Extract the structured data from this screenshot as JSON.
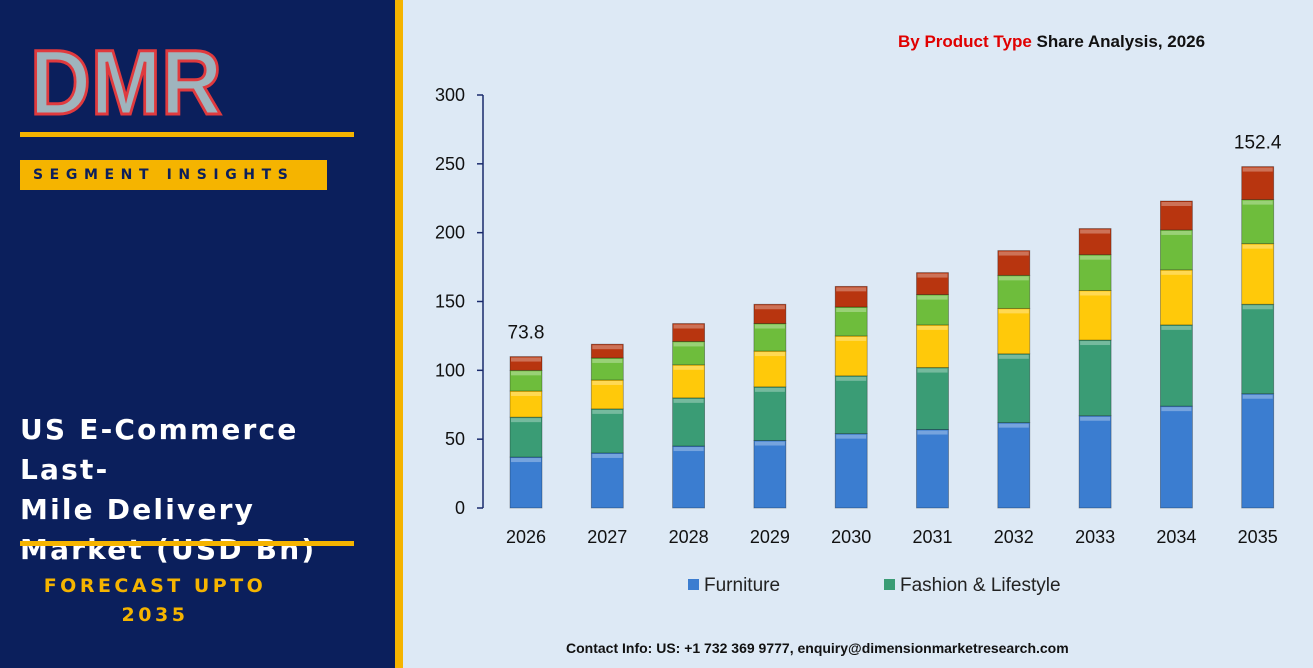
{
  "brand": {
    "logo_text": "DMR",
    "colors": {
      "panel": "#0b1f5c",
      "accent": "#f5b400",
      "logo_red": "#e03a3e",
      "logo_gray": "#9fb4bd"
    }
  },
  "sidebar": {
    "badge": "SEGMENT INSIGHTS",
    "title_lines": [
      "US E-Commerce Last-",
      "Mile Delivery",
      "Market (USD Bn)"
    ],
    "forecast_lines": [
      "FORECAST UPTO",
      "2035"
    ]
  },
  "chart_title": {
    "highlight": "By Product Type",
    "rest": " Share Analysis, 2026"
  },
  "chart_data": {
    "type": "bar",
    "stacked": true,
    "categories": [
      "2026",
      "2027",
      "2028",
      "2029",
      "2030",
      "2031",
      "2032",
      "2033",
      "2034",
      "2035"
    ],
    "series": [
      {
        "name": "Furniture",
        "color": "#3b7dd0",
        "values": [
          37,
          40,
          45,
          49,
          54,
          57,
          62,
          67,
          74,
          83
        ]
      },
      {
        "color": "#3a9c75",
        "name": "Fashion & Lifestyle",
        "values": [
          29,
          32,
          35,
          39,
          42,
          45,
          50,
          55,
          59,
          65
        ]
      },
      {
        "color": "#ffc90a",
        "values": [
          19,
          21,
          24,
          26,
          29,
          31,
          33,
          36,
          40,
          44
        ]
      },
      {
        "color": "#6ebd3c",
        "values": [
          15,
          16,
          17,
          20,
          21,
          22,
          24,
          26,
          29,
          32
        ]
      },
      {
        "color": "#b8350f",
        "values": [
          10,
          10,
          13,
          14,
          15,
          16,
          18,
          19,
          21,
          24
        ]
      }
    ],
    "annotations": [
      {
        "category": "2026",
        "text": "73.8"
      },
      {
        "category": "2035",
        "text": "152.4"
      }
    ],
    "ylim": [
      0,
      300
    ],
    "yticks": [
      0,
      50,
      100,
      150,
      200,
      250,
      300
    ],
    "grid": false,
    "legend_position": "bottom"
  },
  "legend": [
    {
      "label": "Furniture",
      "color": "#3b7dd0"
    },
    {
      "label": "Fashion & Lifestyle",
      "color": "#3a9c75"
    }
  ],
  "footer": {
    "contact": "Contact Info: US: +1 732 369 9777, enquiry@dimensionmarketresearch.com"
  }
}
